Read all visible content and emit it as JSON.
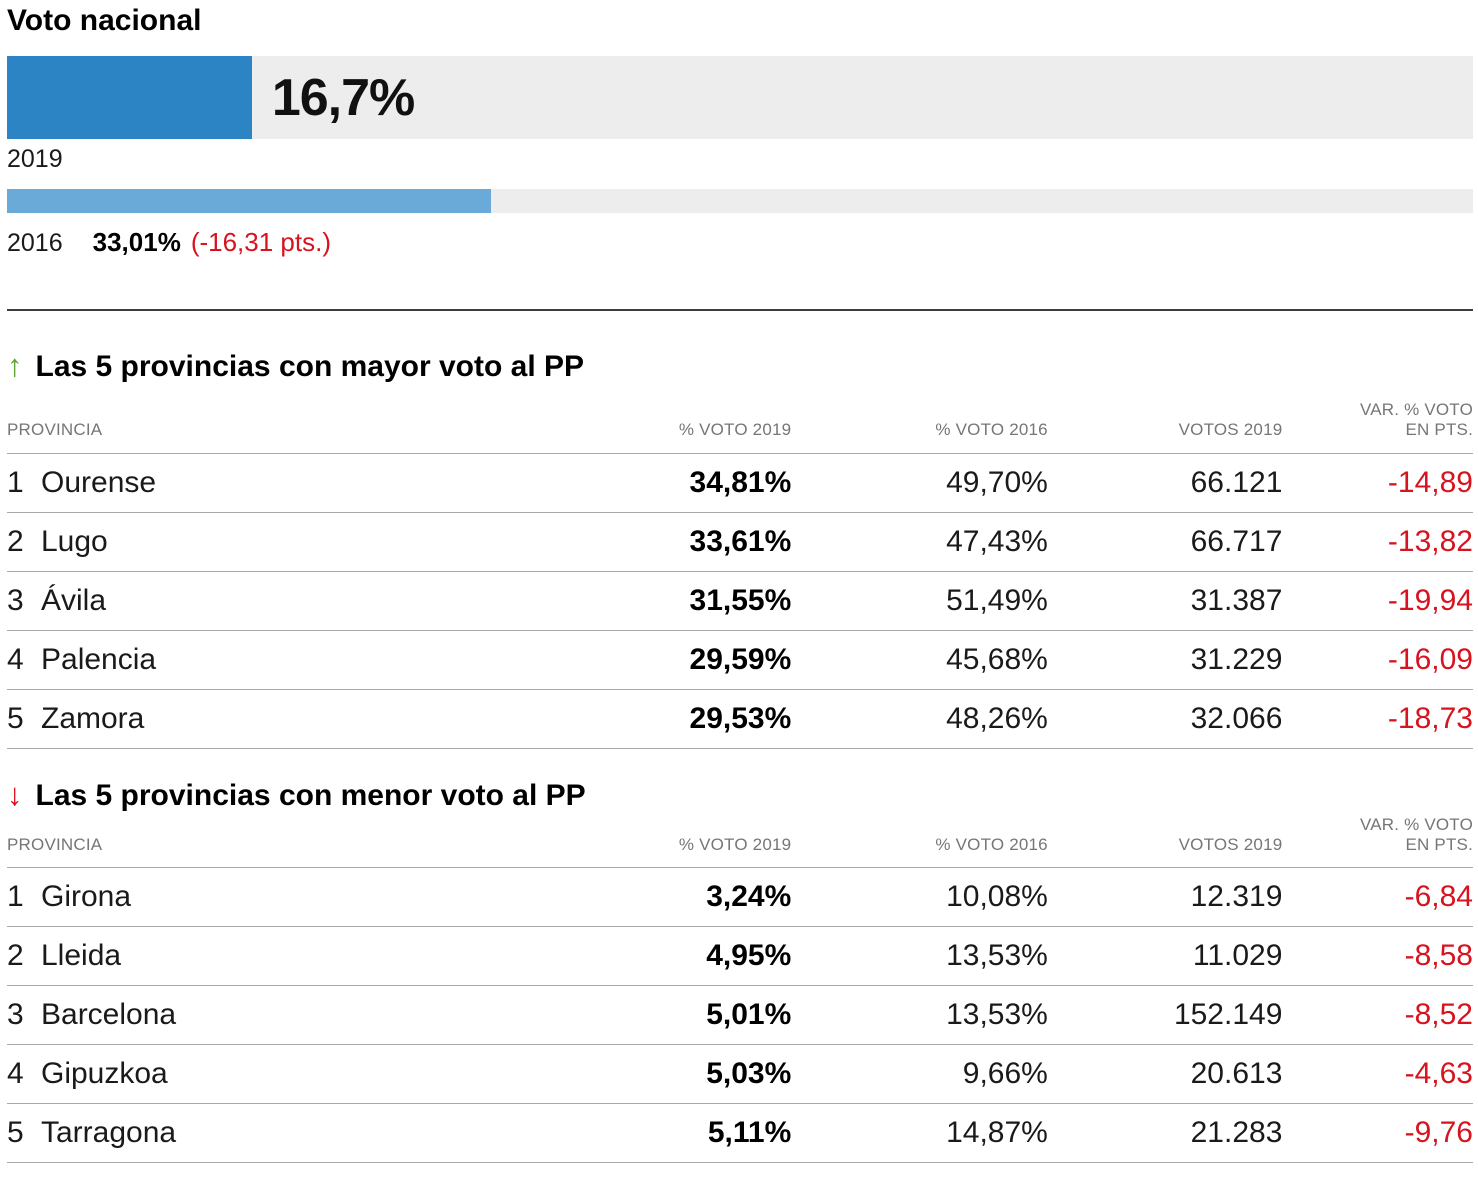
{
  "national": {
    "title": "Voto nacional",
    "bars": [
      {
        "year": "2019",
        "value_pct": 16.7,
        "value_label": "16,7%"
      },
      {
        "year": "2016",
        "value_pct": 33.01,
        "value_label": "33,01%",
        "note": "(-16,31 pts.)"
      }
    ]
  },
  "sections": [
    {
      "arrow": "↑",
      "title": "Las 5 provincias con mayor voto al PP",
      "columns": {
        "province": "PROVINCIA",
        "v2019": "% VOTO 2019",
        "v2016": "% VOTO 2016",
        "votes": "VOTOS 2019",
        "var_line1": "VAR. % VOTO",
        "var_line2": "EN PTS."
      },
      "rows": [
        {
          "rank": "1",
          "province": "Ourense",
          "v2019": "34,81%",
          "v2016": "49,70%",
          "votes": "66.121",
          "var": "-14,89"
        },
        {
          "rank": "2",
          "province": "Lugo",
          "v2019": "33,61%",
          "v2016": "47,43%",
          "votes": "66.717",
          "var": "-13,82"
        },
        {
          "rank": "3",
          "province": "Ávila",
          "v2019": "31,55%",
          "v2016": "51,49%",
          "votes": "31.387",
          "var": "-19,94"
        },
        {
          "rank": "4",
          "province": "Palencia",
          "v2019": "29,59%",
          "v2016": "45,68%",
          "votes": "31.229",
          "var": "-16,09"
        },
        {
          "rank": "5",
          "province": "Zamora",
          "v2019": "29,53%",
          "v2016": "48,26%",
          "votes": "32.066",
          "var": "-18,73"
        }
      ]
    },
    {
      "arrow": "↓",
      "title": "Las 5 provincias con menor voto al PP",
      "columns": {
        "province": "PROVINCIA",
        "v2019": "% VOTO 2019",
        "v2016": "% VOTO 2016",
        "votes": "VOTOS 2019",
        "var_line1": "VAR. % VOTO",
        "var_line2": "EN PTS."
      },
      "rows": [
        {
          "rank": "1",
          "province": "Girona",
          "v2019": "3,24%",
          "v2016": "10,08%",
          "votes": "12.319",
          "var": "-6,84"
        },
        {
          "rank": "2",
          "province": "Lleida",
          "v2019": "4,95%",
          "v2016": "13,53%",
          "votes": "11.029",
          "var": "-8,58"
        },
        {
          "rank": "3",
          "province": "Barcelona",
          "v2019": "5,01%",
          "v2016": "13,53%",
          "votes": "152.149",
          "var": "-8,52"
        },
        {
          "rank": "4",
          "province": "Gipuzkoa",
          "v2019": "5,03%",
          "v2016": "9,66%",
          "votes": "20.613",
          "var": "-4,63"
        },
        {
          "rank": "5",
          "province": "Tarragona",
          "v2019": "5,11%",
          "v2016": "14,87%",
          "votes": "21.283",
          "var": "-9,76"
        }
      ]
    }
  ],
  "colors": {
    "bar_2019": "#2c84c4",
    "bar_2016": "#69aad8",
    "bar_track": "#ededed",
    "negative_red": "#d6131f",
    "arrow_green": "#58a52f",
    "arrow_red": "#e00d1d"
  },
  "chart_data": [
    {
      "type": "bar",
      "title": "Voto nacional",
      "orientation": "horizontal",
      "categories": [
        "2019",
        "2016"
      ],
      "values": [
        16.7,
        33.01
      ],
      "value_labels": [
        "16,7%",
        "33,01%"
      ],
      "annotations": [
        "(-16,31 pts.)"
      ],
      "xlim": [
        0,
        100
      ],
      "xlabel": "",
      "ylabel": "",
      "grid": false,
      "legend": false
    },
    {
      "type": "table",
      "title": "Las 5 provincias con mayor voto al PP",
      "columns": [
        "PROVINCIA",
        "% VOTO 2019",
        "% VOTO 2016",
        "VOTOS 2019",
        "VAR. % VOTO EN PTS."
      ],
      "rows": [
        [
          "1 Ourense",
          "34,81%",
          "49,70%",
          "66.121",
          "-14,89"
        ],
        [
          "2 Lugo",
          "33,61%",
          "47,43%",
          "66.717",
          "-13,82"
        ],
        [
          "3 Ávila",
          "31,55%",
          "51,49%",
          "31.387",
          "-19,94"
        ],
        [
          "4 Palencia",
          "29,59%",
          "45,68%",
          "31.229",
          "-16,09"
        ],
        [
          "5 Zamora",
          "29,53%",
          "48,26%",
          "32.066",
          "-18,73"
        ]
      ]
    },
    {
      "type": "table",
      "title": "Las 5 provincias con menor voto al PP",
      "columns": [
        "PROVINCIA",
        "% VOTO 2019",
        "% VOTO 2016",
        "VOTOS 2019",
        "VAR. % VOTO EN PTS."
      ],
      "rows": [
        [
          "1 Girona",
          "3,24%",
          "10,08%",
          "12.319",
          "-6,84"
        ],
        [
          "2 Lleida",
          "4,95%",
          "13,53%",
          "11.029",
          "-8,58"
        ],
        [
          "3 Barcelona",
          "5,01%",
          "13,53%",
          "152.149",
          "-8,52"
        ],
        [
          "4 Gipuzkoa",
          "5,03%",
          "9,66%",
          "20.613",
          "-4,63"
        ],
        [
          "5 Tarragona",
          "5,11%",
          "14,87%",
          "21.283",
          "-9,76"
        ]
      ]
    }
  ]
}
